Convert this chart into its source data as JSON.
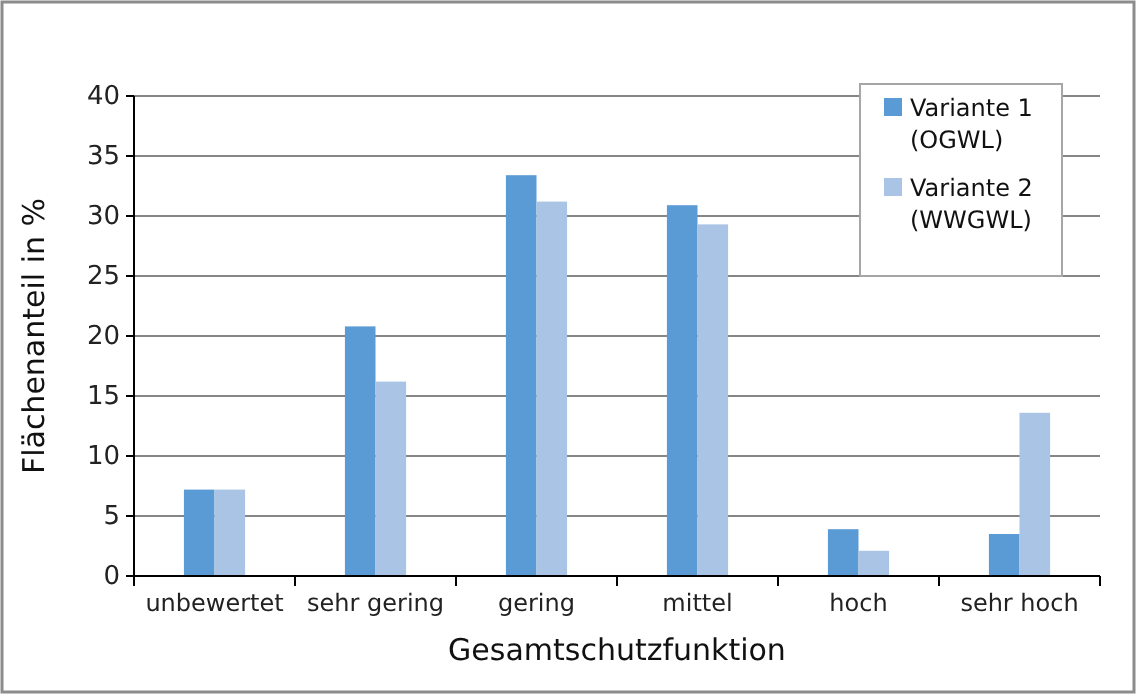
{
  "chart_data": {
    "type": "bar",
    "xlabel": "Gesamtschutzfunktion",
    "ylabel": "Flächenanteil in %",
    "categories": [
      "unbewertet",
      "sehr gering",
      "gering",
      "mittel",
      "hoch",
      "sehr hoch"
    ],
    "series": [
      {
        "name": "Variante 1 (OGWL)",
        "color": "#5b9bd5",
        "values": [
          7.2,
          20.8,
          33.4,
          30.9,
          3.9,
          3.5
        ]
      },
      {
        "name": "Variante 2 (WWGWL)",
        "color": "#a9c4e4",
        "values": [
          7.2,
          16.2,
          31.2,
          29.3,
          2.1,
          13.6
        ]
      }
    ],
    "ylim": [
      0,
      40
    ],
    "yticks": [
      0,
      5,
      10,
      15,
      20,
      25,
      30,
      35,
      40
    ],
    "grid": "y",
    "legend": "top right"
  }
}
